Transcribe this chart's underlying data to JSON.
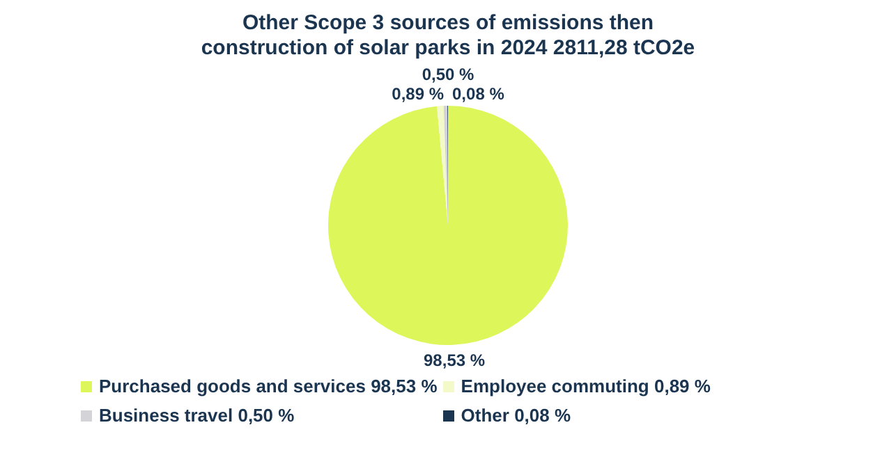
{
  "chart_data": {
    "type": "pie",
    "title": "Other Scope 3 sources of emissions then construction of solar parks in 2024 2811,28 tCO2e",
    "categories": [
      "Purchased goods and services",
      "Employee commuting",
      "Business travel",
      "Other"
    ],
    "values": [
      98.53,
      0.89,
      0.5,
      0.08
    ],
    "value_labels": [
      "98,53 %",
      "0,89 %",
      "0,50 %",
      "0,08 %"
    ],
    "colors": [
      "#ddf65a",
      "#f3f9c8",
      "#d4d4d8",
      "#1b3550"
    ],
    "legend": "bottom"
  }
}
